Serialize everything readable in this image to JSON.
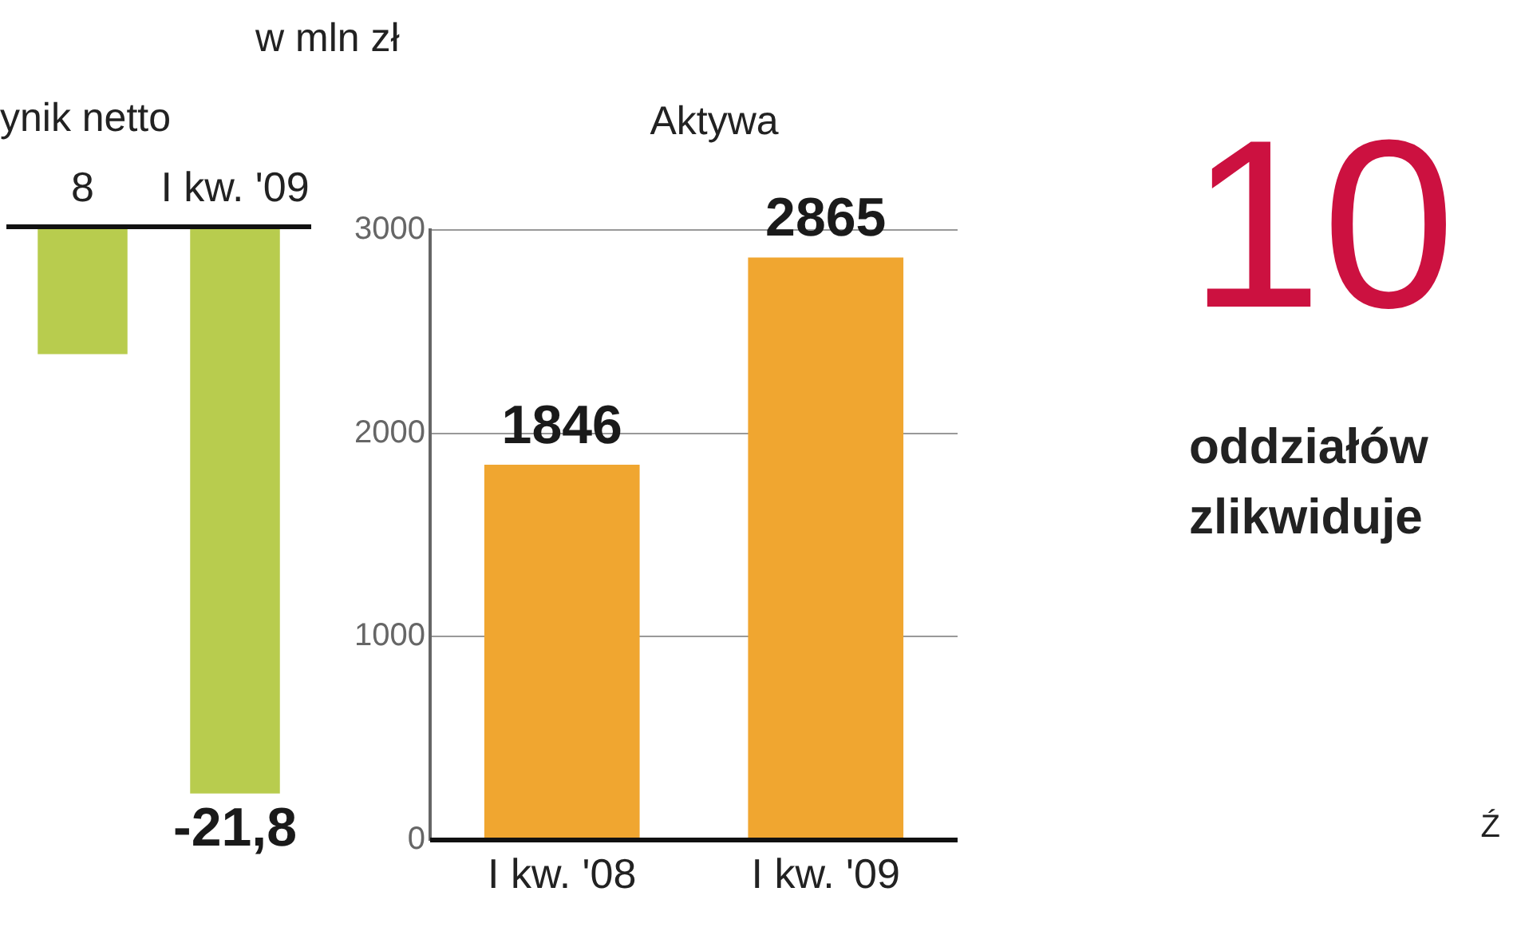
{
  "chart_data": [
    {
      "type": "bar",
      "title": "ynik netto",
      "subtitle": "w mln zł",
      "categories": [
        "8",
        "I kw. '09"
      ],
      "values": [
        -4.9,
        -21.8
      ],
      "value_labels": [
        null,
        "-21,8"
      ],
      "color": "#b8cc4e"
    },
    {
      "type": "bar",
      "title": "Aktywa",
      "categories": [
        "I kw. '08",
        "I kw. '09"
      ],
      "values": [
        1846,
        2865
      ],
      "data_labels": true,
      "color": "#f0a630",
      "ylim": [
        0,
        3000
      ],
      "yticks": [
        0,
        1000,
        2000,
        3000
      ],
      "grid": "y"
    },
    {
      "type": "other",
      "annotations": [
        "10",
        "oddziałów",
        "zlikwiduje",
        "Ź"
      ]
    }
  ]
}
